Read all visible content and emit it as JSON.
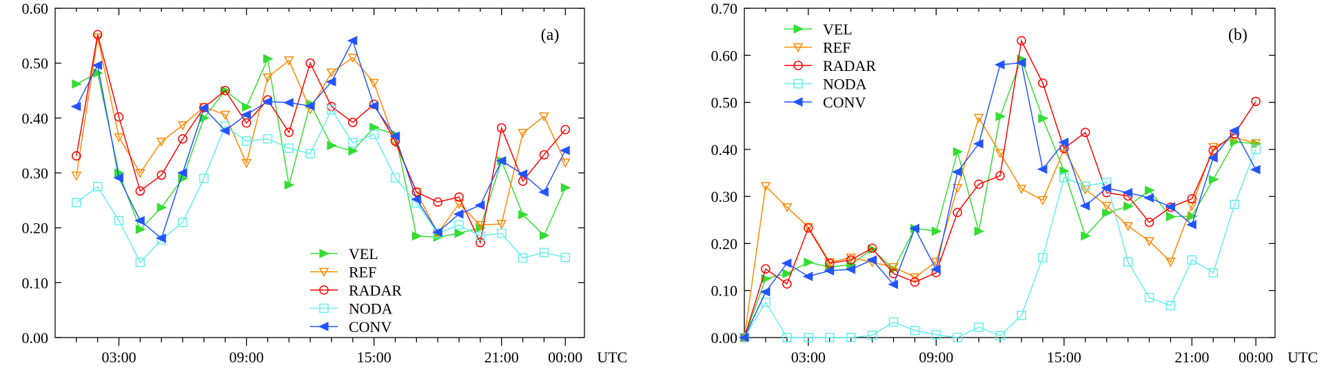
{
  "chart_data": [
    {
      "type": "line",
      "panel_label": "(a)",
      "x_unit": "UTC",
      "xticks": [
        {
          "x": 3,
          "label": "03:00"
        },
        {
          "x": 9,
          "label": "09:00"
        },
        {
          "x": 15,
          "label": "15:00"
        },
        {
          "x": 21,
          "label": "21:00"
        },
        {
          "x": 24,
          "label": "00:00"
        }
      ],
      "xlim": [
        0,
        24.9
      ],
      "ylim": [
        0,
        0.6
      ],
      "yticks": [
        "0.00",
        "0.10",
        "0.20",
        "0.30",
        "0.40",
        "0.50",
        "0.60"
      ],
      "x": [
        1,
        2,
        3,
        4,
        5,
        6,
        7,
        8,
        9,
        10,
        11,
        12,
        13,
        14,
        15,
        16,
        17,
        18,
        19,
        20,
        21,
        22,
        23,
        24
      ],
      "series": [
        {
          "name": "VEL",
          "color": "#33dd33",
          "marker": "tri-right",
          "values": [
            0.462,
            0.482,
            0.3,
            0.197,
            0.237,
            0.29,
            0.4,
            0.45,
            0.42,
            0.508,
            0.278,
            0.426,
            0.35,
            0.34,
            0.383,
            0.37,
            0.185,
            0.183,
            0.19,
            0.2,
            0.322,
            0.224,
            0.186,
            0.273
          ]
        },
        {
          "name": "REF",
          "color": "#ff8800",
          "marker": "tri-down",
          "values": [
            0.295,
            0.547,
            0.365,
            0.3,
            0.357,
            0.387,
            0.42,
            0.406,
            0.318,
            0.474,
            0.505,
            0.416,
            0.483,
            0.51,
            0.464,
            0.355,
            0.265,
            0.19,
            0.244,
            0.205,
            0.207,
            0.373,
            0.403,
            0.319
          ]
        },
        {
          "name": "RADAR",
          "color": "#ff0000",
          "marker": "circle",
          "values": [
            0.331,
            0.552,
            0.402,
            0.267,
            0.296,
            0.362,
            0.419,
            0.45,
            0.391,
            0.433,
            0.374,
            0.5,
            0.421,
            0.392,
            0.425,
            0.358,
            0.265,
            0.247,
            0.256,
            0.173,
            0.382,
            0.285,
            0.333,
            0.379
          ]
        },
        {
          "name": "NODA",
          "color": "#66eeee",
          "marker": "square",
          "values": [
            0.246,
            0.275,
            0.213,
            0.137,
            0.178,
            0.21,
            0.29,
            0.385,
            0.358,
            0.362,
            0.345,
            0.335,
            0.415,
            0.355,
            0.37,
            0.291,
            0.245,
            0.19,
            0.205,
            0.185,
            0.19,
            0.145,
            0.155,
            0.146
          ]
        },
        {
          "name": "CONV",
          "color": "#2255ff",
          "marker": "tri-left",
          "values": [
            0.421,
            0.496,
            0.291,
            0.213,
            0.181,
            0.3,
            0.418,
            0.377,
            0.406,
            0.43,
            0.428,
            0.422,
            0.466,
            0.541,
            0.422,
            0.367,
            0.252,
            0.192,
            0.225,
            0.241,
            0.322,
            0.298,
            0.265,
            0.341
          ]
        }
      ],
      "legend_position": "bottom-center"
    },
    {
      "type": "line",
      "panel_label": "(b)",
      "x_unit": "UTC",
      "xticks": [
        {
          "x": 3,
          "label": "03:00"
        },
        {
          "x": 9,
          "label": "09:00"
        },
        {
          "x": 15,
          "label": "15:00"
        },
        {
          "x": 21,
          "label": "21:00"
        },
        {
          "x": 24,
          "label": "00:00"
        }
      ],
      "xlim": [
        0,
        24.9
      ],
      "ylim": [
        0,
        0.7
      ],
      "yticks": [
        "0.00",
        "0.10",
        "0.20",
        "0.30",
        "0.40",
        "0.50",
        "0.60",
        "0.70"
      ],
      "x": [
        0,
        1,
        2,
        3,
        4,
        5,
        6,
        7,
        8,
        9,
        10,
        11,
        12,
        13,
        14,
        15,
        16,
        17,
        18,
        19,
        20,
        21,
        22,
        23,
        24
      ],
      "series": [
        {
          "name": "VEL",
          "color": "#33dd33",
          "marker": "tri-right",
          "values": [
            0.0,
            0.125,
            0.136,
            0.16,
            0.15,
            0.155,
            0.188,
            0.145,
            0.232,
            0.226,
            0.395,
            0.226,
            0.47,
            0.592,
            0.466,
            0.354,
            0.216,
            0.265,
            0.279,
            0.313,
            0.257,
            0.258,
            0.336,
            0.416,
            0.412
          ]
        },
        {
          "name": "REF",
          "color": "#ff8800",
          "marker": "tri-down",
          "values": [
            0.0,
            0.322,
            0.277,
            0.235,
            0.16,
            0.17,
            0.16,
            0.15,
            0.128,
            0.161,
            0.318,
            0.467,
            0.392,
            0.316,
            0.292,
            0.4,
            0.315,
            0.28,
            0.237,
            0.205,
            0.161,
            0.28,
            0.405,
            0.425,
            0.413
          ]
        },
        {
          "name": "RADAR",
          "color": "#ff0000",
          "marker": "circle",
          "values": [
            0.0,
            0.146,
            0.114,
            0.233,
            0.158,
            0.165,
            0.19,
            0.136,
            0.118,
            0.138,
            0.266,
            0.326,
            0.344,
            0.631,
            0.541,
            0.402,
            0.436,
            0.308,
            0.301,
            0.245,
            0.277,
            0.295,
            0.398,
            0.433,
            0.502
          ]
        },
        {
          "name": "NODA",
          "color": "#66eeee",
          "marker": "square",
          "values": [
            0.0,
            0.075,
            0.0,
            0.0,
            0.0,
            0.0,
            0.005,
            0.033,
            0.015,
            0.006,
            0.0,
            0.022,
            0.004,
            0.047,
            0.17,
            0.34,
            0.322,
            0.33,
            0.161,
            0.085,
            0.068,
            0.165,
            0.138,
            0.283,
            0.4
          ]
        },
        {
          "name": "CONV",
          "color": "#2255ff",
          "marker": "tri-left",
          "values": [
            0.0,
            0.097,
            0.158,
            0.13,
            0.142,
            0.145,
            0.165,
            0.113,
            0.232,
            0.145,
            0.352,
            0.412,
            0.58,
            0.584,
            0.358,
            0.415,
            0.28,
            0.318,
            0.308,
            0.297,
            0.278,
            0.24,
            0.382,
            0.44,
            0.357
          ]
        }
      ],
      "legend_position": "top-left"
    }
  ]
}
